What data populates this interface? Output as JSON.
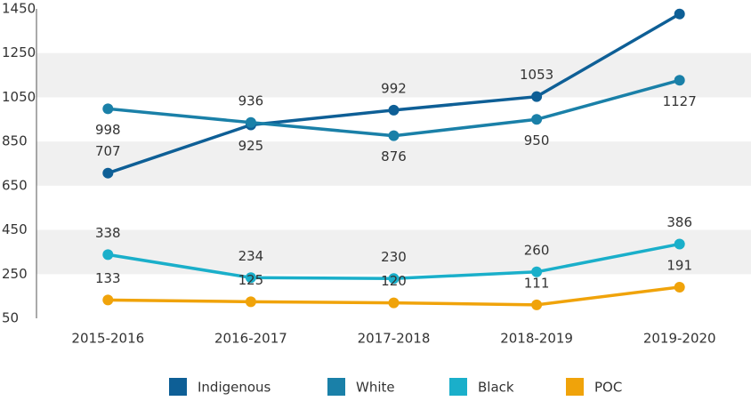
{
  "chart_data": {
    "type": "line",
    "categories": [
      "2015-2016",
      "2016-2017",
      "2017-2018",
      "2018-2019",
      "2019-2020"
    ],
    "series": [
      {
        "name": "Indigenous",
        "color": "#0e5f96",
        "values": [
          707,
          925,
          992,
          1053,
          1427
        ]
      },
      {
        "name": "White",
        "color": "#1a80a8",
        "values": [
          998,
          936,
          876,
          950,
          1127
        ]
      },
      {
        "name": "Black",
        "color": "#1aafca",
        "values": [
          338,
          234,
          230,
          260,
          386
        ]
      },
      {
        "name": "POC",
        "color": "#f0a30a",
        "values": [
          133,
          125,
          120,
          111,
          191
        ]
      }
    ],
    "ylim": [
      50,
      1450
    ],
    "yticks": [
      50,
      250,
      450,
      650,
      850,
      1050,
      1250,
      1450
    ],
    "grid": true
  }
}
